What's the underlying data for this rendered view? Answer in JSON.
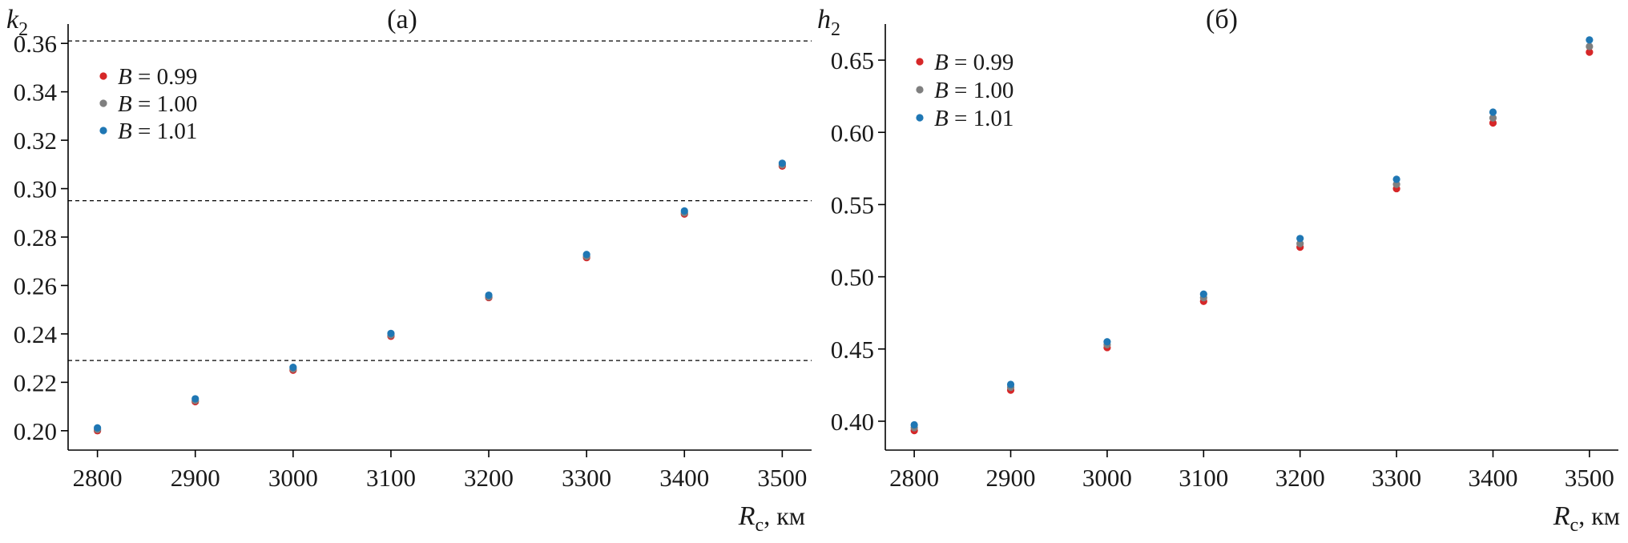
{
  "chart_data": [
    {
      "type": "scatter",
      "panel_label": "(а)",
      "ylabel": {
        "main": "k",
        "sub": "2"
      },
      "xlabel": {
        "main": "R",
        "sub": "c",
        "unit": ", км"
      },
      "xlim": [
        2770,
        3530
      ],
      "ylim": [
        0.192,
        0.368
      ],
      "x_ticks": [
        2800,
        2900,
        3000,
        3100,
        3200,
        3300,
        3400,
        3500
      ],
      "y_ticks": [
        "0.20",
        "0.22",
        "0.24",
        "0.26",
        "0.28",
        "0.30",
        "0.32",
        "0.34",
        "0.36"
      ],
      "grid": false,
      "legend_position": "upper-left",
      "reference_lines": [
        0.229,
        0.295,
        0.361
      ],
      "reference_line_style": "dashed",
      "x": [
        2800,
        2900,
        3000,
        3100,
        3200,
        3300,
        3400,
        3500
      ],
      "series": [
        {
          "name": "B = 0.99",
          "legend_var": "B",
          "legend_value": " = 0.99",
          "color": "#d62728",
          "values": [
            0.2,
            0.212,
            0.225,
            0.239,
            0.255,
            0.2715,
            0.2895,
            0.3093
          ]
        },
        {
          "name": "B = 1.00",
          "legend_var": "B",
          "legend_value": " = 1.00",
          "color": "#7f7f7f",
          "values": [
            0.2005,
            0.2125,
            0.2255,
            0.2395,
            0.2553,
            0.272,
            0.29,
            0.3098
          ]
        },
        {
          "name": "B = 1.01",
          "legend_var": "B",
          "legend_value": " = 1.01",
          "color": "#1f77b4",
          "values": [
            0.2012,
            0.2132,
            0.2262,
            0.2402,
            0.256,
            0.2728,
            0.2908,
            0.3105
          ]
        }
      ]
    },
    {
      "type": "scatter",
      "panel_label": "(б)",
      "ylabel": {
        "main": "h",
        "sub": "2"
      },
      "xlabel": {
        "main": "R",
        "sub": "c",
        "unit": ", км"
      },
      "xlim": [
        2770,
        3530
      ],
      "ylim": [
        0.38,
        0.675
      ],
      "x_ticks": [
        2800,
        2900,
        3000,
        3100,
        3200,
        3300,
        3400,
        3500
      ],
      "y_ticks": [
        "0.40",
        "0.45",
        "0.50",
        "0.55",
        "0.60",
        "0.65"
      ],
      "grid": false,
      "legend_position": "upper-left",
      "reference_lines": [],
      "x": [
        2800,
        2900,
        3000,
        3100,
        3200,
        3300,
        3400,
        3500
      ],
      "series": [
        {
          "name": "B = 0.99",
          "legend_var": "B",
          "legend_value": " = 0.99",
          "color": "#d62728",
          "values": [
            0.3935,
            0.4215,
            0.451,
            0.483,
            0.5205,
            0.561,
            0.6065,
            0.6555
          ]
        },
        {
          "name": "B = 1.00",
          "legend_var": "B",
          "legend_value": " = 1.00",
          "color": "#7f7f7f",
          "values": [
            0.3955,
            0.4235,
            0.453,
            0.4855,
            0.523,
            0.564,
            0.61,
            0.6595
          ]
        },
        {
          "name": "B = 1.01",
          "legend_var": "B",
          "legend_value": " = 1.01",
          "color": "#1f77b4",
          "values": [
            0.3975,
            0.4255,
            0.455,
            0.488,
            0.5265,
            0.5675,
            0.614,
            0.664
          ]
        }
      ]
    }
  ]
}
